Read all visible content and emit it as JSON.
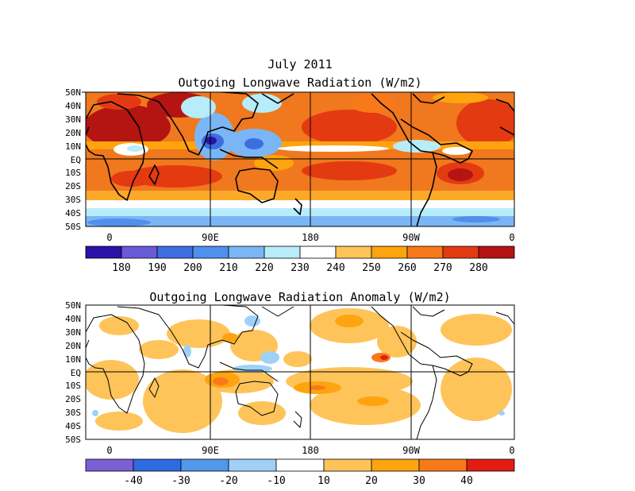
{
  "titles": {
    "date": "July 2011",
    "top": "Outgoing Longwave Radiation (W/m2)",
    "bottom": "Outgoing Longwave Radiation Anomaly (W/m2)"
  },
  "lat_labels": [
    "50N",
    "40N",
    "30N",
    "20N",
    "10N",
    "EQ",
    "10S",
    "20S",
    "30S",
    "40S",
    "50S"
  ],
  "lon_labels": [
    "0",
    "90E",
    "180",
    "90W",
    "0"
  ],
  "top_colorbar": {
    "colors": [
      "#2a12a8",
      "#6a5ad8",
      "#3c6ee0",
      "#4f90ec",
      "#7ab6f5",
      "#b7ecfb",
      "#ffffff",
      "#fec45a",
      "#fea40e",
      "#f8791a",
      "#e33a12",
      "#b41412"
    ],
    "labels": [
      "180",
      "190",
      "200",
      "210",
      "220",
      "230",
      "240",
      "250",
      "260",
      "270",
      "280"
    ]
  },
  "bottom_colorbar": {
    "colors": [
      "#7a5fd5",
      "#2f6be0",
      "#5197ec",
      "#9fd1f7",
      "#ffffff",
      "#fec45a",
      "#fea40e",
      "#f8791a",
      "#e31c12"
    ],
    "labels": [
      "-40",
      "-30",
      "-20",
      "-10",
      "10",
      "20",
      "30",
      "40"
    ]
  },
  "colors": {
    "olr_high": "#c4161a",
    "olr_mid": "#f0781e",
    "olr_low": "#fca828",
    "anom_pos": "#fec45a"
  }
}
